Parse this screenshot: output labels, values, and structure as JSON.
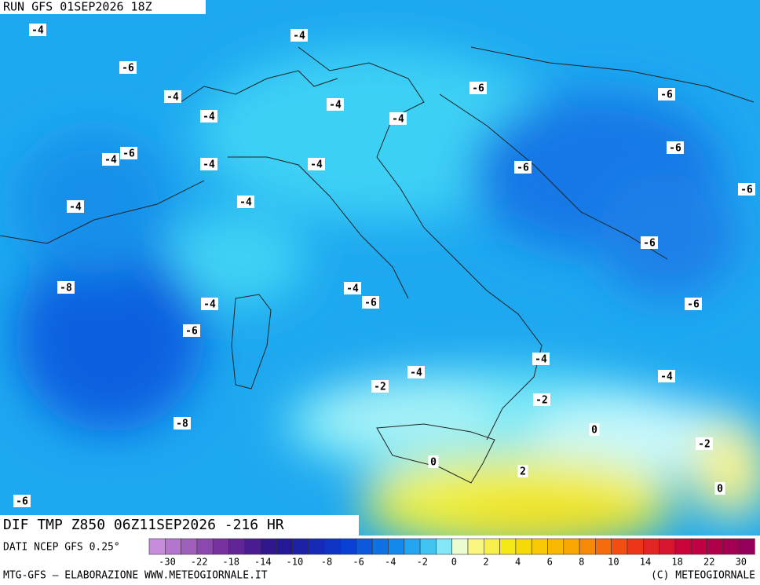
{
  "header": {
    "run": "RUN GFS 01SEP2026 18Z"
  },
  "map": {
    "contour_labels": [
      "-4",
      "-4",
      "-6",
      "-4",
      "-4",
      "-6",
      "-6",
      "-4",
      "-4",
      "-6",
      "-4",
      "-4",
      "-4",
      "-6",
      "-6",
      "-6",
      "-4",
      "-4",
      "-6",
      "-8",
      "-4",
      "-6",
      "-4",
      "-6",
      "-6",
      "-4",
      "-4",
      "-4",
      "-2",
      "-2",
      "-8",
      "0",
      "-2",
      "0",
      "2",
      "0",
      "-6"
    ]
  },
  "footer": {
    "title": "DIF TMP Z850 06Z11SEP2026 -216 HR",
    "source": "DATI NCEP GFS 0.25°",
    "credit": "MTG-GFS – ELABORAZIONE WWW.METEOGIORNALE.IT",
    "copyright": "(C) METEOGIORNALE"
  },
  "colorbar": {
    "labels": [
      -30,
      -22,
      -18,
      -14,
      -10,
      -8,
      -6,
      -4,
      -2,
      0,
      2,
      4,
      6,
      8,
      10,
      14,
      18,
      22,
      30
    ]
  }
}
